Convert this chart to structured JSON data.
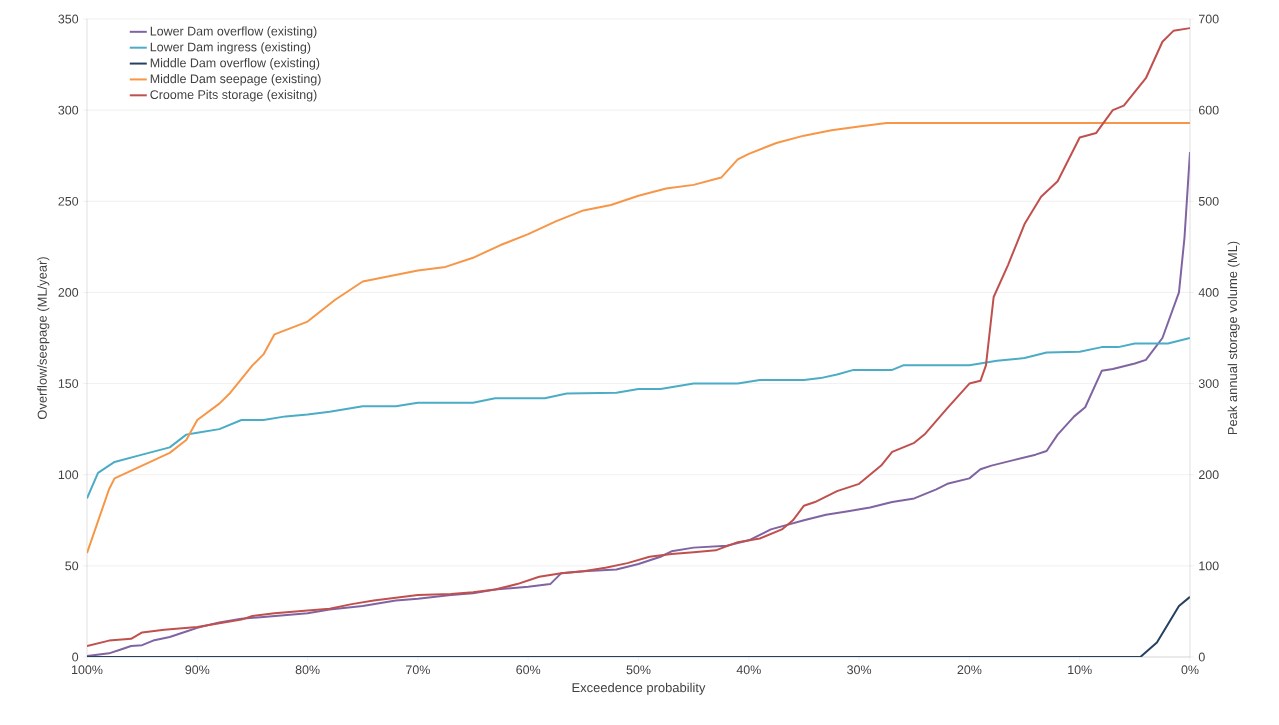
{
  "chart_data": {
    "type": "line",
    "xlabel": "Exceedence probability",
    "ylabel": "Overflow/seepage (ML/year)",
    "y2label": "Peak annual storage volume (ML)",
    "xlim": [
      100,
      0
    ],
    "xticks": [
      {
        "value": 100,
        "label": "100%"
      },
      {
        "value": 90,
        "label": "90%"
      },
      {
        "value": 80,
        "label": "80%"
      },
      {
        "value": 70,
        "label": "70%"
      },
      {
        "value": 60,
        "label": "60%"
      },
      {
        "value": 50,
        "label": "50%"
      },
      {
        "value": 40,
        "label": "40%"
      },
      {
        "value": 30,
        "label": "30%"
      },
      {
        "value": 20,
        "label": "20%"
      },
      {
        "value": 10,
        "label": "10%"
      },
      {
        "value": 0,
        "label": "0%"
      }
    ],
    "ylim": [
      0,
      350
    ],
    "yticks": [
      0,
      50,
      100,
      150,
      200,
      250,
      300,
      350
    ],
    "y2lim": [
      0,
      700
    ],
    "y2ticks": [
      0,
      100,
      200,
      300,
      400,
      500,
      600,
      700
    ],
    "grid": "y",
    "legend": "top left",
    "marker": "none",
    "line_style": "solid",
    "series": [
      {
        "name": "Lower Dam overflow (existing)",
        "color": "#8064a2",
        "x": [
          100,
          98,
          97,
          96,
          95,
          94,
          92.5,
          91,
          90,
          88,
          86,
          84,
          80,
          78,
          75,
          72,
          70,
          67,
          65,
          63,
          60,
          58,
          57,
          55,
          52,
          50,
          48,
          47,
          45,
          42,
          40,
          38,
          35,
          33,
          31,
          29,
          27,
          25,
          23,
          22,
          20,
          19,
          18,
          16,
          14,
          13,
          12,
          10.5,
          9.5,
          8,
          7,
          5,
          4,
          2.5,
          1,
          0.5,
          0
        ],
        "values": [
          0.5,
          2,
          4,
          6,
          6.5,
          9,
          11,
          14,
          16,
          19,
          21,
          22,
          24,
          26,
          28,
          31,
          32,
          34,
          35,
          37,
          38.5,
          40,
          46,
          47,
          48,
          51,
          55,
          58,
          60,
          61,
          64,
          70,
          75,
          78,
          80,
          82,
          85,
          87,
          92,
          95,
          98,
          103,
          105,
          108,
          111,
          113,
          122,
          132,
          137,
          157,
          158,
          161,
          163,
          175,
          200,
          230,
          277
        ]
      },
      {
        "name": "Lower Dam ingress (existing)",
        "color": "#4bacc6",
        "x": [
          100,
          99,
          97.5,
          95,
          92.5,
          91,
          90,
          88,
          86,
          84,
          82,
          80,
          78,
          75,
          72,
          70,
          65,
          63,
          58.5,
          56.5,
          52,
          50,
          48,
          45,
          41,
          39,
          35,
          33.5,
          32,
          30.5,
          27,
          26,
          20,
          17.5,
          15,
          13,
          10,
          8,
          6.5,
          5,
          2,
          0
        ],
        "values": [
          87,
          101,
          107,
          111,
          115,
          122,
          123,
          125,
          130,
          130,
          132,
          133,
          134.5,
          137.5,
          137.5,
          139.5,
          139.5,
          142,
          142,
          144.5,
          145,
          147,
          147,
          150,
          150,
          152,
          152,
          153,
          155,
          157.5,
          157.5,
          160,
          160,
          162.5,
          164,
          167,
          167.5,
          170,
          170,
          172,
          172,
          175
        ]
      },
      {
        "name": "Middle Dam overflow (existing)",
        "color": "#254061",
        "x": [
          100,
          50,
          4.5,
          3,
          2,
          1,
          0
        ],
        "values": [
          0,
          0,
          0,
          8,
          18,
          28,
          33
        ]
      },
      {
        "name": "Middle Dam seepage (existing)",
        "color": "#f79646",
        "x": [
          100,
          98,
          97.5,
          95,
          92.5,
          91,
          90,
          88,
          87,
          85,
          84,
          83,
          80,
          77.5,
          75,
          72.5,
          70,
          67.5,
          65,
          62.5,
          60,
          57.5,
          55,
          52.5,
          50,
          47.5,
          45,
          42.5,
          41,
          40,
          37.5,
          35,
          32.5,
          30,
          27.5,
          25,
          10,
          5,
          0
        ],
        "values": [
          57,
          92,
          98,
          105,
          112,
          119,
          130,
          139,
          145,
          160,
          166,
          177,
          184,
          196,
          206,
          209,
          212,
          214,
          219,
          226,
          232,
          239,
          245,
          248,
          253,
          257,
          259,
          263,
          273,
          276,
          282,
          286,
          289,
          291,
          293,
          293,
          293,
          293,
          293
        ]
      },
      {
        "name": "Croome Pits storage (exisitng)",
        "color": "#c0504d",
        "axis": "y2",
        "x": [
          100,
          98,
          96,
          95,
          93,
          90,
          88,
          86,
          85,
          83,
          80,
          78,
          76,
          74,
          72,
          70,
          67,
          65,
          63,
          61,
          59,
          57,
          55,
          53,
          51,
          49,
          47,
          45,
          43,
          41,
          39,
          37,
          36,
          35,
          34,
          32,
          30,
          28,
          27,
          25,
          24,
          22,
          20,
          19,
          18.5,
          17.8,
          16.5,
          15,
          13.5,
          12,
          10,
          8.5,
          7,
          6,
          4,
          2.5,
          1.5,
          0
        ],
        "values": [
          12,
          18,
          20,
          27,
          30,
          33,
          37,
          41,
          45,
          48,
          51,
          53,
          58,
          62,
          65,
          68,
          69,
          71,
          74,
          80,
          88,
          92,
          94,
          98,
          103,
          110,
          113,
          115,
          117,
          126,
          130,
          140,
          150,
          166,
          170,
          182,
          190,
          210,
          225,
          235,
          245,
          273,
          300,
          303,
          320,
          395,
          430,
          475,
          505,
          522,
          570,
          575,
          600,
          605,
          635,
          675,
          687,
          690
        ]
      }
    ]
  }
}
